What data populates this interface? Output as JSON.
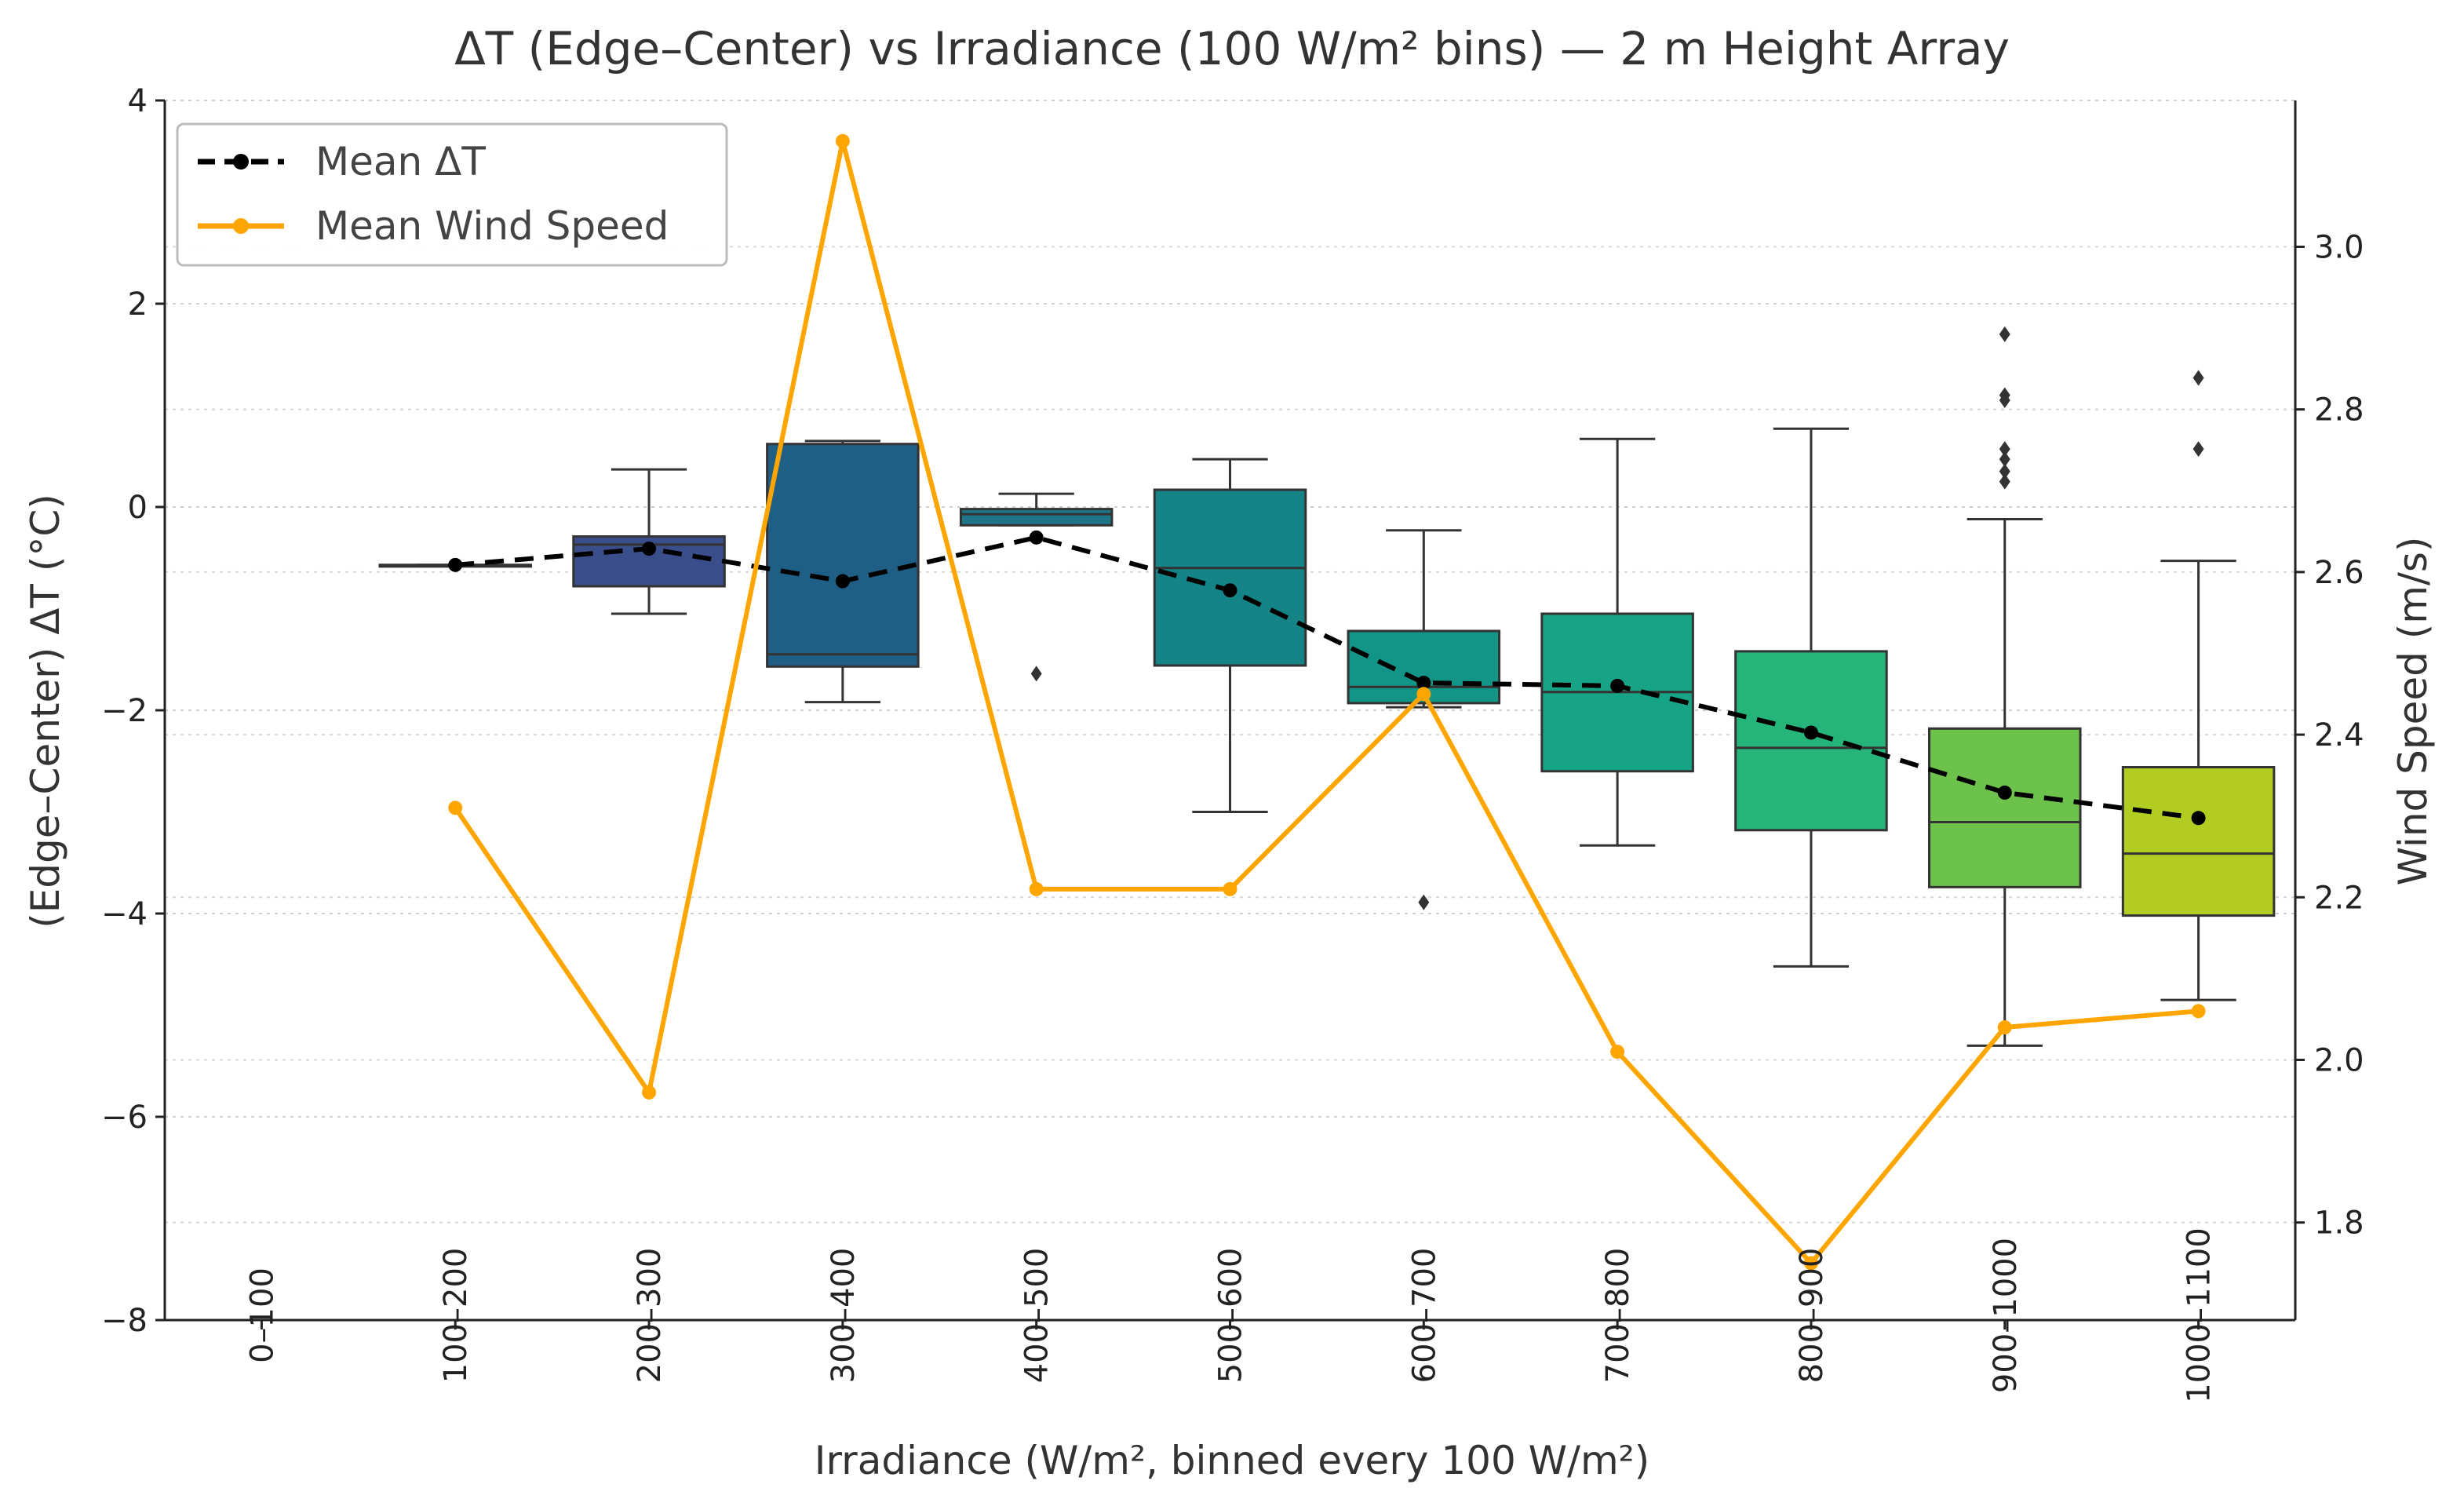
{
  "chart_data": {
    "type": "box",
    "title": "ΔT (Edge–Center) vs Irradiance (100 W/m² bins) — 2 m Height Array",
    "xlabel": "Irradiance (W/m², binned every 100 W/m²)",
    "ylabel": "(Edge–Center) ΔT (°C)",
    "y2label": "Wind Speed (m/s)",
    "categories": [
      "0–100",
      "100–200",
      "200–300",
      "300–400",
      "400–500",
      "500–600",
      "600–700",
      "700–800",
      "800–900",
      "900–1000",
      "1000–1100"
    ],
    "ylim": [
      -8,
      4
    ],
    "yticks": [
      4,
      2,
      0,
      -2,
      -4,
      -6,
      -8
    ],
    "y2lim": [
      1.68,
      3.18
    ],
    "y2ticks": [
      1.8,
      2.0,
      2.2,
      2.4,
      2.6,
      2.8,
      3.0
    ],
    "grid": "horizontal dotted",
    "legend_position": "top-left",
    "legend": [
      {
        "label": "Mean ΔT",
        "color": "#000000",
        "style": "dashed line with dots"
      },
      {
        "label": "Mean Wind Speed",
        "color": "#ffa500",
        "style": "solid line with dots"
      }
    ],
    "boxes": [
      {
        "category": "100–200",
        "q1": -0.57,
        "median": -0.57,
        "q3": -0.57,
        "whisker_low": -0.57,
        "whisker_high": -0.57,
        "outliers": [],
        "color": "#3b1f6b"
      },
      {
        "category": "200–300",
        "q1": -0.78,
        "median": -0.37,
        "q3": -0.29,
        "whisker_low": -1.05,
        "whisker_high": 0.37,
        "outliers": [],
        "color": "#3b4e8c"
      },
      {
        "category": "300–400",
        "q1": -1.57,
        "median": -1.45,
        "q3": 0.62,
        "whisker_low": -1.92,
        "whisker_high": 0.65,
        "outliers": [],
        "color": "#1f5f86"
      },
      {
        "category": "400–500",
        "q1": -0.18,
        "median": -0.07,
        "q3": -0.02,
        "whisker_low": -0.18,
        "whisker_high": 0.13,
        "outliers": [
          -1.64
        ],
        "color": "#1e7488"
      },
      {
        "category": "500–600",
        "q1": -1.56,
        "median": -0.6,
        "q3": 0.17,
        "whisker_low": -3.0,
        "whisker_high": 0.47,
        "outliers": [],
        "color": "#148486"
      },
      {
        "category": "600–700",
        "q1": -1.93,
        "median": -1.77,
        "q3": -1.22,
        "whisker_low": -1.97,
        "whisker_high": -0.23,
        "outliers": [
          -3.89
        ],
        "color": "#129486"
      },
      {
        "category": "700–800",
        "q1": -2.6,
        "median": -1.82,
        "q3": -1.05,
        "whisker_low": -3.33,
        "whisker_high": 0.67,
        "outliers": [],
        "color": "#17a486"
      },
      {
        "category": "800–900",
        "q1": -3.18,
        "median": -2.37,
        "q3": -1.42,
        "whisker_low": -4.52,
        "whisker_high": 0.77,
        "outliers": [],
        "color": "#25b57a"
      },
      {
        "category": "900–1000",
        "q1": -3.74,
        "median": -3.1,
        "q3": -2.18,
        "whisker_low": -5.3,
        "whisker_high": -0.12,
        "outliers": [
          0.25,
          0.35,
          0.47,
          0.57,
          1.05,
          1.1,
          1.7
        ],
        "color": "#6cc24b"
      },
      {
        "category": "1000–1100",
        "q1": -4.02,
        "median": -3.41,
        "q3": -2.56,
        "whisker_low": -4.85,
        "whisker_high": -0.53,
        "outliers": [
          0.57,
          1.27
        ],
        "color": "#b2cc21"
      }
    ],
    "series": [
      {
        "name": "Mean ΔT",
        "axis": "left",
        "categories": [
          "100–200",
          "200–300",
          "300–400",
          "400–500",
          "500–600",
          "600–700",
          "700–800",
          "800–900",
          "900–1000",
          "1000–1100"
        ],
        "values": [
          -0.57,
          -0.41,
          -0.73,
          -0.3,
          -0.82,
          -1.73,
          -1.76,
          -2.22,
          -2.81,
          -3.06
        ]
      },
      {
        "name": "Mean Wind Speed",
        "axis": "right",
        "categories": [
          "100–200",
          "200–300",
          "300–400",
          "400–500",
          "500–600",
          "600–700",
          "700–800",
          "800–900",
          "900–1000",
          "1000–1100"
        ],
        "values": [
          2.31,
          1.96,
          3.13,
          2.21,
          2.21,
          2.45,
          2.01,
          1.75,
          2.04,
          2.06
        ]
      }
    ]
  }
}
